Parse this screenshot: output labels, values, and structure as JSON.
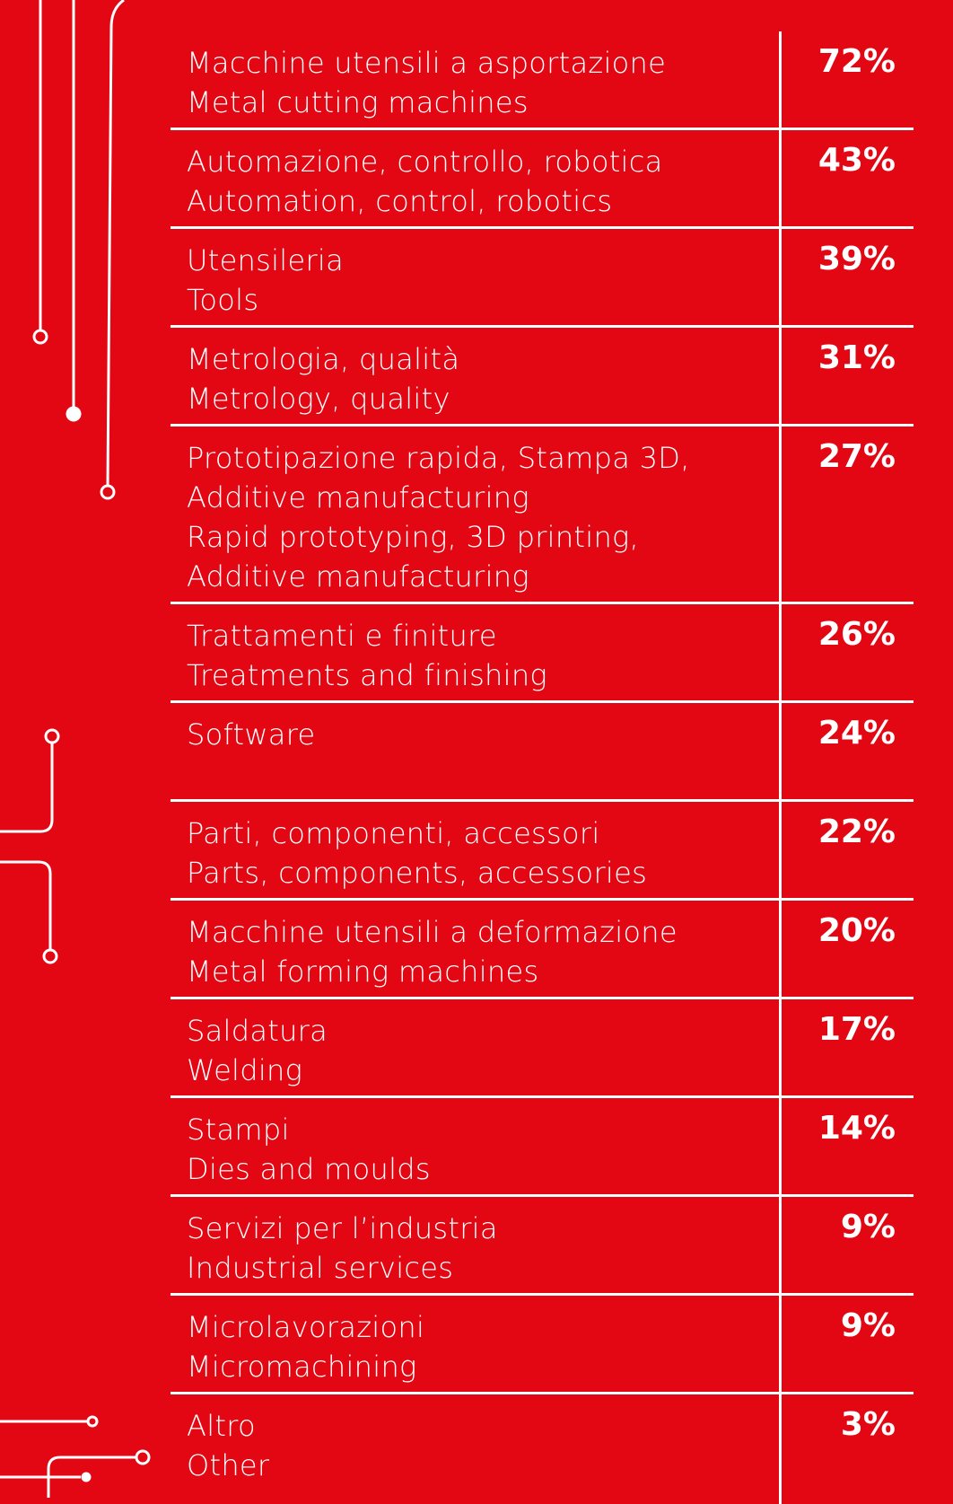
{
  "rows": [
    {
      "lines": [
        "Macchine utensili a asportazione",
        "Metal cutting machines"
      ],
      "percent": "72%"
    },
    {
      "lines": [
        "Automazione, controllo, robotica",
        "Automation, control, robotics"
      ],
      "percent": "43%"
    },
    {
      "lines": [
        "Utensileria",
        "Tools"
      ],
      "percent": "39%"
    },
    {
      "lines": [
        "Metrologia, qualità",
        "Metrology, quality"
      ],
      "percent": "31%"
    },
    {
      "lines": [
        "Prototipazione rapida, Stampa 3D,",
        "Additive manufacturing",
        "Rapid prototyping, 3D printing,",
        "Additive manufacturing"
      ],
      "percent": "27%"
    },
    {
      "lines": [
        "Trattamenti e finiture",
        "Treatments and finishing"
      ],
      "percent": "26%"
    },
    {
      "lines": [
        "Software"
      ],
      "percent": "24%"
    },
    {
      "lines": [
        "Parti, componenti, accessori",
        "Parts, components, accessories"
      ],
      "percent": "22%"
    },
    {
      "lines": [
        "Macchine utensili a deformazione",
        "Metal forming machines"
      ],
      "percent": "20%"
    },
    {
      "lines": [
        "Saldatura",
        "Welding"
      ],
      "percent": "17%"
    },
    {
      "lines": [
        "Stampi",
        "Dies and moulds"
      ],
      "percent": "14%"
    },
    {
      "lines": [
        "Servizi per l’industria",
        "Industrial services"
      ],
      "percent": "9%"
    },
    {
      "lines": [
        "Microlavorazioni",
        "Micromachining"
      ],
      "percent": "9%"
    },
    {
      "lines": [
        "Altro",
        "Other"
      ],
      "percent": "3%"
    }
  ],
  "colors": {
    "background": "#e30613",
    "foreground": "#ffffff"
  }
}
